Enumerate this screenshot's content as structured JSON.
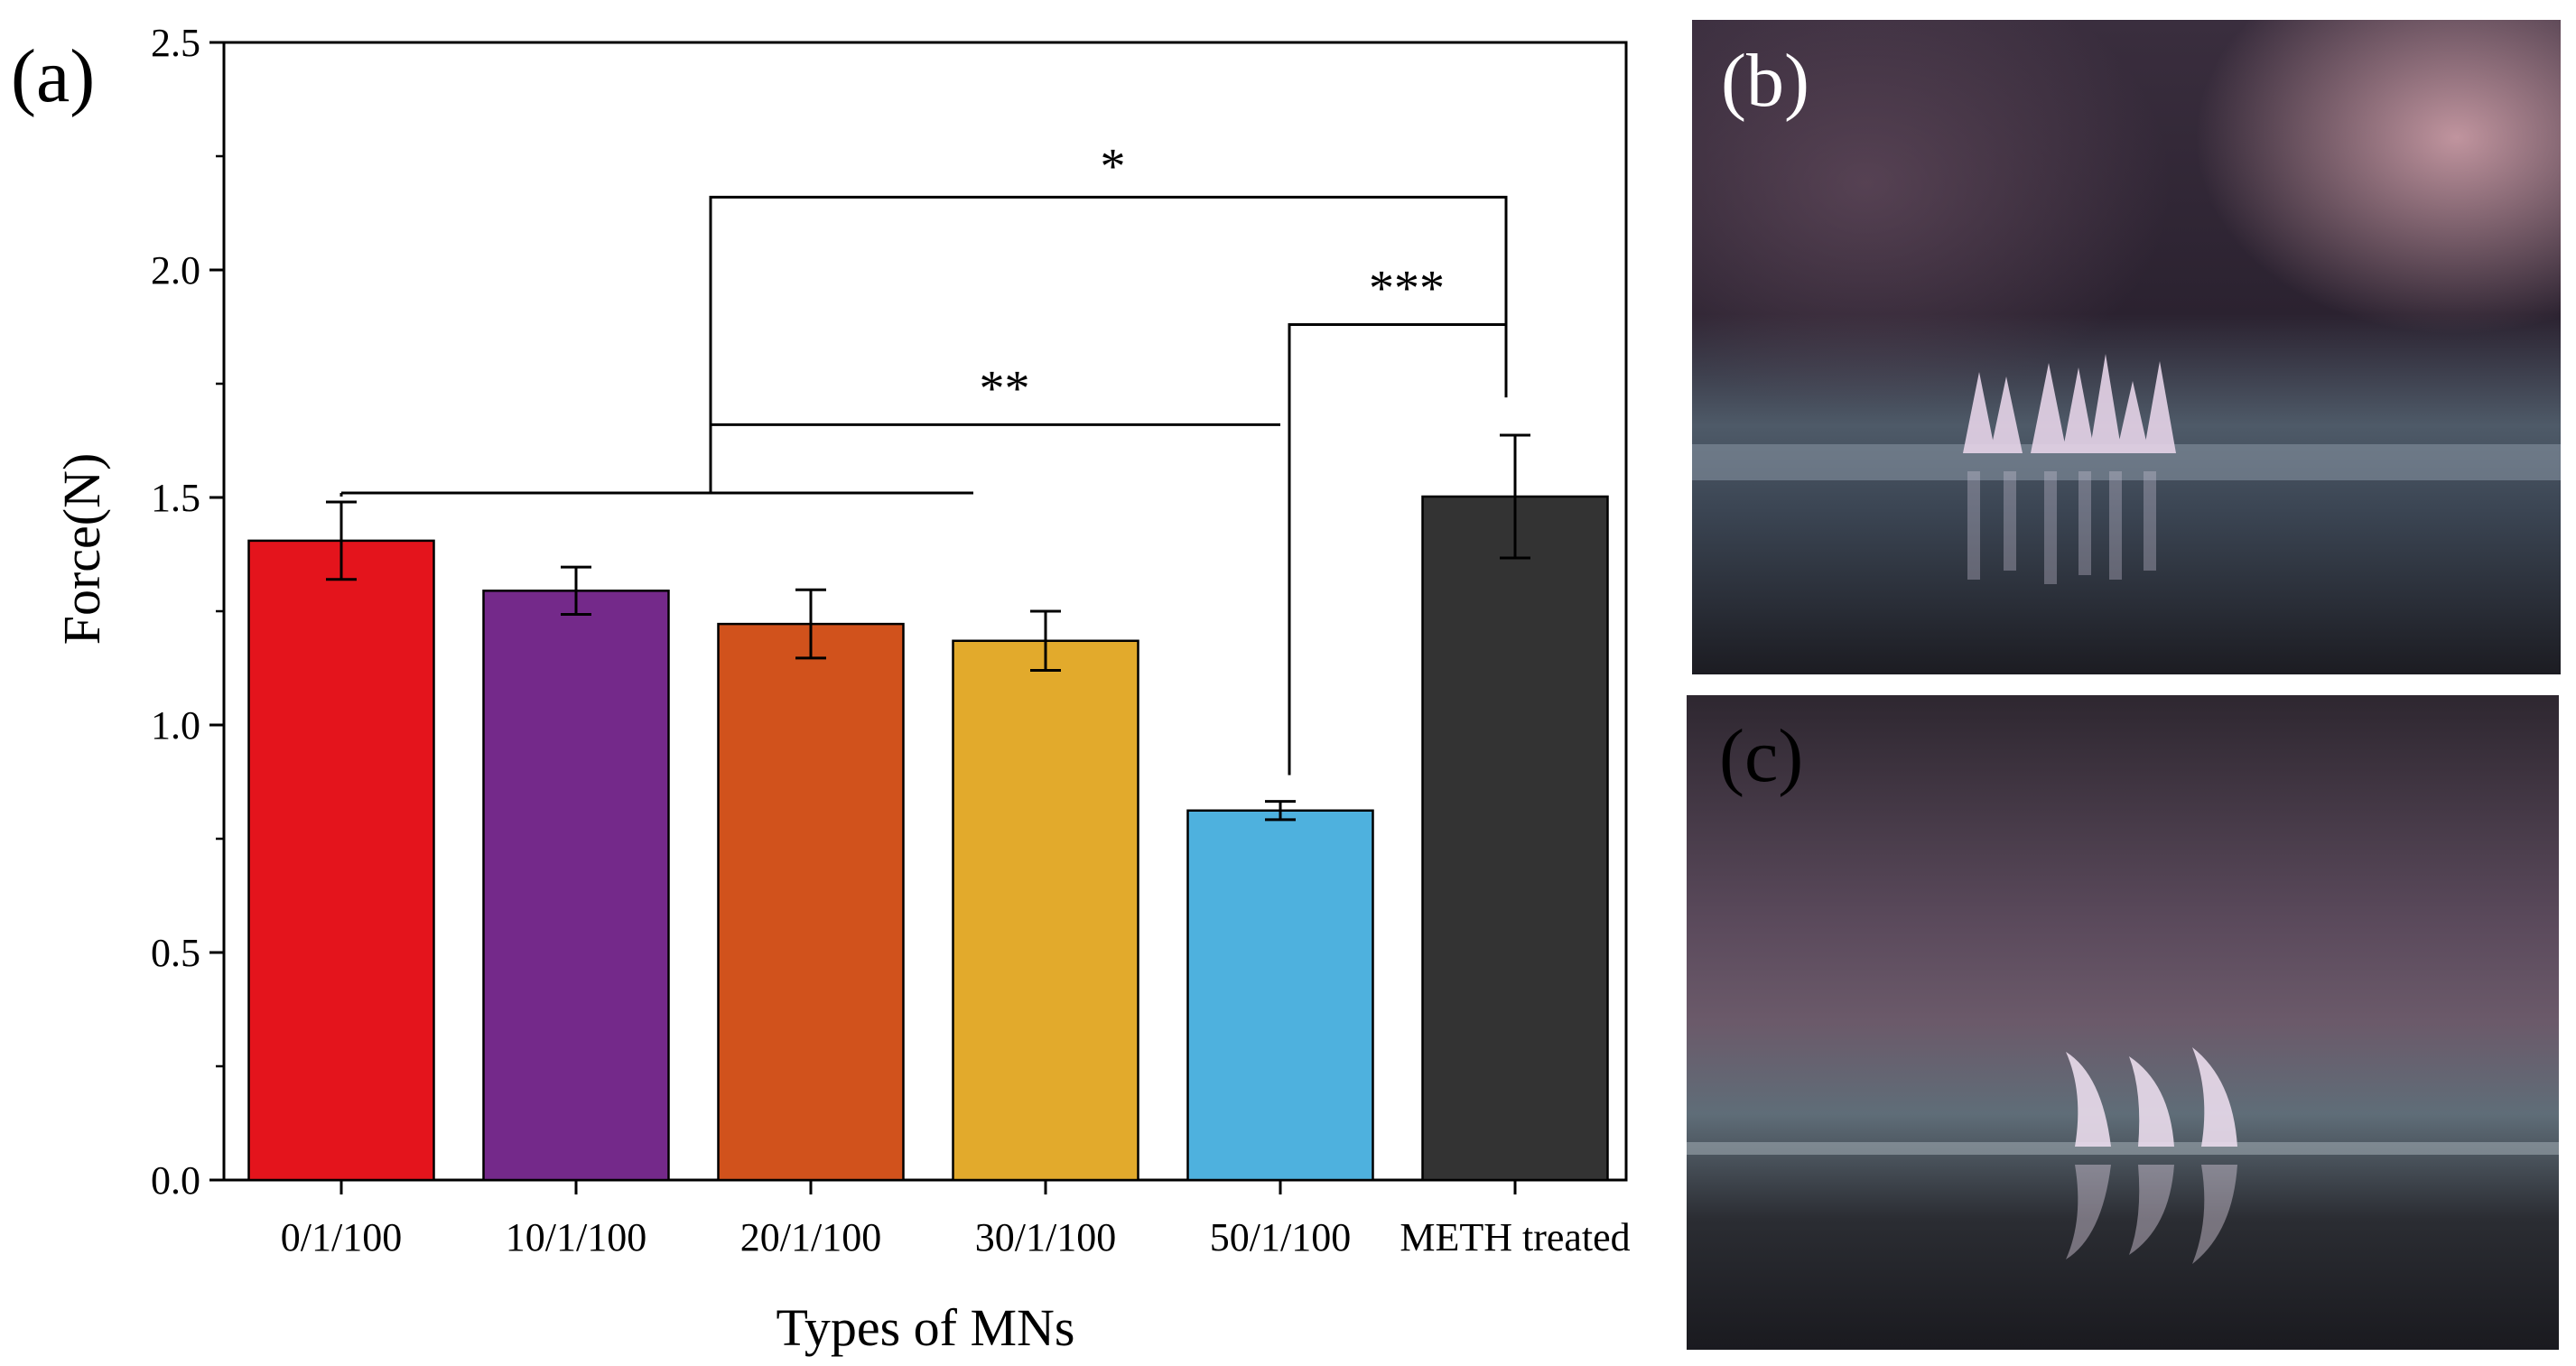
{
  "panels": {
    "a_label": "(a)",
    "b_label": "(b)",
    "c_label": "(c)"
  },
  "chart_data": {
    "type": "bar",
    "title": "",
    "xlabel": "Types of MNs",
    "ylabel": "Force(N)",
    "ylim": [
      0,
      2.5
    ],
    "yticks": [
      "0.0",
      "0.5",
      "1.0",
      "1.5",
      "2.0",
      "2.5"
    ],
    "categories": [
      "0/1/100",
      "10/1/100",
      "20/1/100",
      "30/1/100",
      "50/1/100",
      "METH treated"
    ],
    "values": [
      1.405,
      1.295,
      1.222,
      1.185,
      0.812,
      1.502
    ],
    "errors": [
      0.085,
      0.052,
      0.075,
      0.065,
      0.02,
      0.135
    ],
    "colors": [
      "#e4141c",
      "#74298a",
      "#d1521c",
      "#e2aa2c",
      "#4eb1de",
      "#333333"
    ],
    "grid": false,
    "significance": [
      {
        "label": "*",
        "y": 2.16
      },
      {
        "label": "**",
        "y": 1.66
      },
      {
        "label": "***",
        "y": 1.88
      }
    ]
  }
}
